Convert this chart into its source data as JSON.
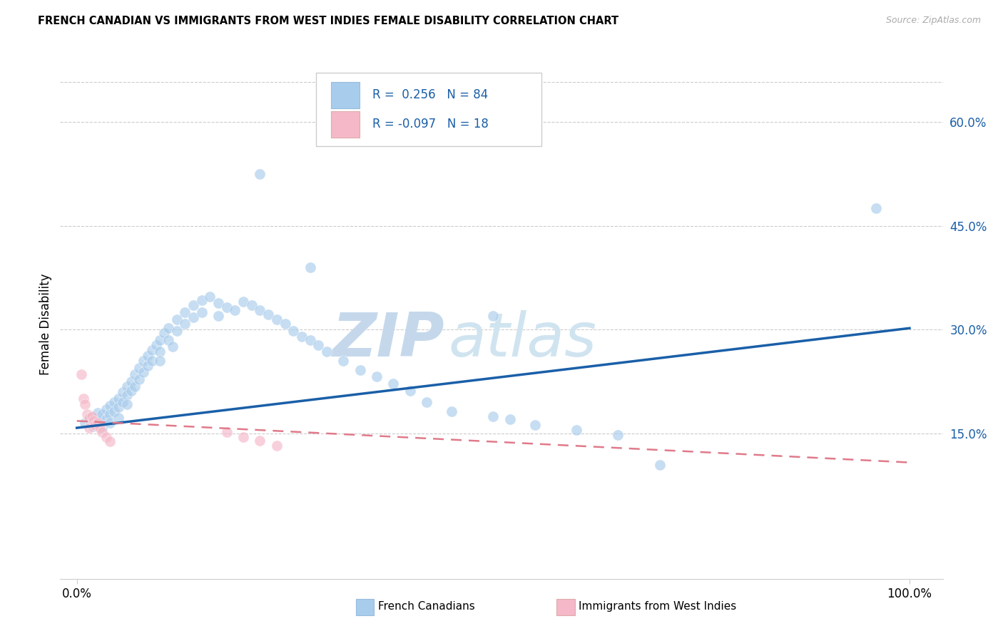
{
  "title": "FRENCH CANADIAN VS IMMIGRANTS FROM WEST INDIES FEMALE DISABILITY CORRELATION CHART",
  "source": "Source: ZipAtlas.com",
  "ylabel": "Female Disability",
  "ytick_labels": [
    "15.0%",
    "30.0%",
    "45.0%",
    "60.0%"
  ],
  "ytick_values": [
    0.15,
    0.3,
    0.45,
    0.6
  ],
  "xtick_labels": [
    "0.0%",
    "100.0%"
  ],
  "xtick_values": [
    0.0,
    1.0
  ],
  "xlim": [
    -0.02,
    1.04
  ],
  "ylim": [
    -0.06,
    0.675
  ],
  "blue_R": "0.256",
  "blue_N": "84",
  "pink_R": "-0.097",
  "pink_N": "18",
  "blue_color": "#a8ccec",
  "pink_color": "#f5b8c8",
  "blue_line_color": "#1a5fa8",
  "pink_line_color": "#e07a8a",
  "legend_label_blue": "French Canadians",
  "legend_label_pink": "Immigrants from West Indies",
  "watermark_zip": "ZIP",
  "watermark_atlas": "atlas",
  "blue_scatter_x": [
    0.01,
    0.015,
    0.02,
    0.02,
    0.025,
    0.025,
    0.03,
    0.03,
    0.035,
    0.035,
    0.04,
    0.04,
    0.04,
    0.045,
    0.045,
    0.05,
    0.05,
    0.05,
    0.055,
    0.055,
    0.06,
    0.06,
    0.06,
    0.065,
    0.065,
    0.07,
    0.07,
    0.075,
    0.075,
    0.08,
    0.08,
    0.085,
    0.085,
    0.09,
    0.09,
    0.095,
    0.1,
    0.1,
    0.1,
    0.105,
    0.11,
    0.11,
    0.115,
    0.12,
    0.12,
    0.13,
    0.13,
    0.14,
    0.14,
    0.15,
    0.15,
    0.16,
    0.17,
    0.17,
    0.18,
    0.19,
    0.2,
    0.21,
    0.22,
    0.23,
    0.24,
    0.25,
    0.26,
    0.27,
    0.28,
    0.29,
    0.3,
    0.32,
    0.34,
    0.36,
    0.38,
    0.4,
    0.42,
    0.45,
    0.5,
    0.52,
    0.55,
    0.6,
    0.65,
    0.7,
    0.22,
    0.28,
    0.5,
    0.96
  ],
  "blue_scatter_y": [
    0.165,
    0.17,
    0.175,
    0.16,
    0.18,
    0.168,
    0.178,
    0.158,
    0.185,
    0.17,
    0.19,
    0.178,
    0.165,
    0.195,
    0.182,
    0.2,
    0.188,
    0.172,
    0.21,
    0.195,
    0.218,
    0.205,
    0.192,
    0.225,
    0.212,
    0.235,
    0.218,
    0.245,
    0.228,
    0.255,
    0.238,
    0.262,
    0.248,
    0.27,
    0.255,
    0.278,
    0.285,
    0.268,
    0.255,
    0.295,
    0.302,
    0.285,
    0.275,
    0.315,
    0.298,
    0.325,
    0.308,
    0.335,
    0.318,
    0.342,
    0.325,
    0.348,
    0.338,
    0.32,
    0.332,
    0.328,
    0.34,
    0.335,
    0.328,
    0.322,
    0.315,
    0.308,
    0.298,
    0.29,
    0.285,
    0.278,
    0.268,
    0.255,
    0.242,
    0.232,
    0.222,
    0.212,
    0.195,
    0.182,
    0.175,
    0.17,
    0.162,
    0.155,
    0.148,
    0.105,
    0.525,
    0.39,
    0.32,
    0.475
  ],
  "pink_scatter_x": [
    0.005,
    0.008,
    0.01,
    0.012,
    0.015,
    0.015,
    0.018,
    0.02,
    0.022,
    0.025,
    0.028,
    0.03,
    0.035,
    0.04,
    0.18,
    0.2,
    0.22,
    0.24
  ],
  "pink_scatter_y": [
    0.235,
    0.2,
    0.192,
    0.178,
    0.172,
    0.158,
    0.175,
    0.168,
    0.162,
    0.165,
    0.158,
    0.152,
    0.145,
    0.138,
    0.152,
    0.145,
    0.14,
    0.132
  ],
  "blue_line_x": [
    0.0,
    1.0
  ],
  "blue_line_y": [
    0.158,
    0.302
  ],
  "pink_line_x": [
    0.0,
    1.0
  ],
  "pink_line_y": [
    0.168,
    0.108
  ]
}
